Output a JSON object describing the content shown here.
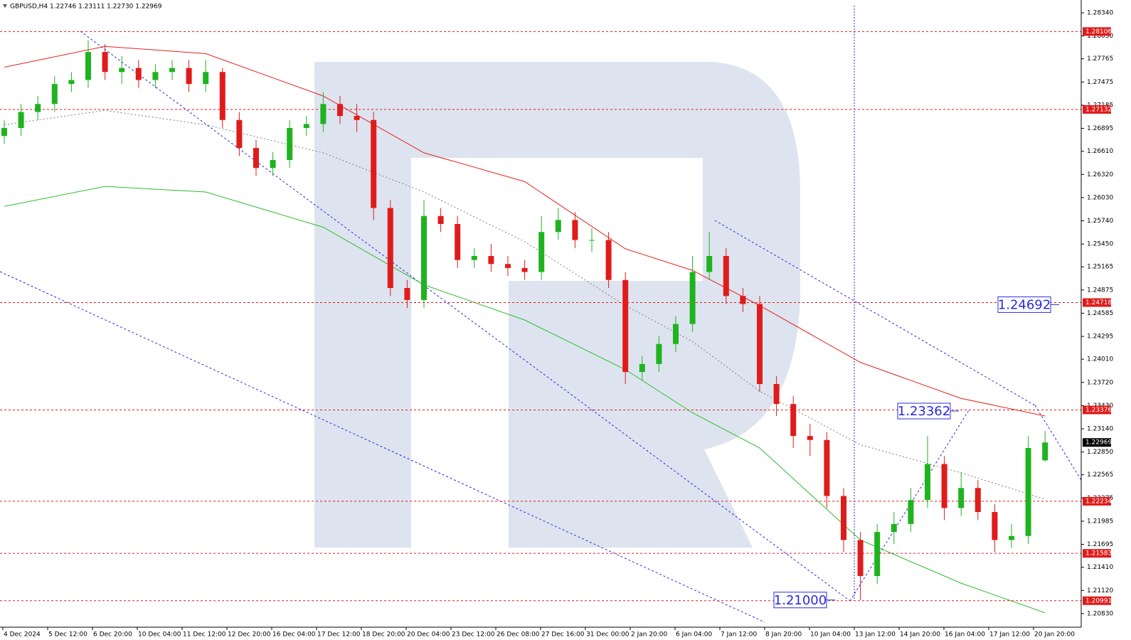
{
  "chart_data": {
    "type": "candlestick",
    "title": "GBPUSD,H4  1.22746 1.23111 1.22730 1.22969",
    "up_color": "#1fb31f",
    "down_color": "#e01b1b",
    "open": [
      1.268,
      1.269,
      1.271,
      1.272,
      1.2745,
      1.275,
      1.2785,
      1.276,
      1.2765,
      1.275,
      1.276,
      1.2765,
      1.2745,
      1.276,
      1.27,
      1.2665,
      1.264,
      1.265,
      1.269,
      1.2695,
      1.272,
      1.2705,
      1.27,
      1.259,
      1.249,
      1.2475,
      1.258,
      1.257,
      1.2525,
      1.253,
      1.252,
      1.2515,
      1.251,
      1.256,
      1.2575,
      1.255,
      1.255,
      1.25,
      1.2385,
      1.2395,
      1.242,
      1.2445,
      1.251,
      1.253,
      1.248,
      1.247,
      1.237,
      1.2345,
      1.2305,
      1.23,
      1.223,
      1.2175,
      1.213,
      1.2185,
      1.2195,
      1.2225,
      1.227,
      1.2215,
      1.224,
      1.221,
      1.2175,
      1.218,
      1.22746
    ],
    "high": [
      1.27,
      1.272,
      1.273,
      1.2755,
      1.276,
      1.28,
      1.2795,
      1.278,
      1.2775,
      1.277,
      1.2775,
      1.2775,
      1.2775,
      1.2765,
      1.271,
      1.2675,
      1.266,
      1.27,
      1.2705,
      1.2735,
      1.273,
      1.272,
      1.271,
      1.26,
      1.25,
      1.26,
      1.259,
      1.258,
      1.254,
      1.2545,
      1.253,
      1.2525,
      1.258,
      1.259,
      1.2585,
      1.2565,
      1.256,
      1.251,
      1.2405,
      1.243,
      1.2455,
      1.253,
      1.256,
      1.254,
      1.249,
      1.248,
      1.238,
      1.2355,
      1.232,
      1.231,
      1.224,
      1.2185,
      1.2195,
      1.221,
      1.224,
      1.2305,
      1.228,
      1.226,
      1.225,
      1.222,
      1.2195,
      1.2305,
      1.23111
    ],
    "low": [
      1.267,
      1.268,
      1.27,
      1.271,
      1.2735,
      1.274,
      1.275,
      1.2745,
      1.274,
      1.274,
      1.275,
      1.2735,
      1.2735,
      1.269,
      1.2655,
      1.263,
      1.263,
      1.264,
      1.268,
      1.2685,
      1.2695,
      1.2685,
      1.2575,
      1.248,
      1.2465,
      1.2465,
      1.256,
      1.2515,
      1.2515,
      1.251,
      1.2505,
      1.25,
      1.25,
      1.255,
      1.254,
      1.2535,
      1.249,
      1.237,
      1.2375,
      1.2385,
      1.241,
      1.2435,
      1.25,
      1.247,
      1.246,
      1.236,
      1.233,
      1.229,
      1.228,
      1.2215,
      1.216,
      1.21,
      1.212,
      1.217,
      1.2185,
      1.2215,
      1.22,
      1.2205,
      1.22,
      1.216,
      1.2165,
      1.217,
      1.2273
    ],
    "close": [
      1.269,
      1.271,
      1.272,
      1.2745,
      1.275,
      1.2785,
      1.276,
      1.2765,
      1.275,
      1.276,
      1.2765,
      1.2745,
      1.276,
      1.27,
      1.2665,
      1.264,
      1.265,
      1.269,
      1.2695,
      1.272,
      1.2705,
      1.27,
      1.259,
      1.249,
      1.2475,
      1.258,
      1.257,
      1.2525,
      1.253,
      1.252,
      1.2515,
      1.251,
      1.256,
      1.2575,
      1.255,
      1.255,
      1.25,
      1.2385,
      1.2395,
      1.242,
      1.2445,
      1.251,
      1.253,
      1.248,
      1.247,
      1.237,
      1.2345,
      1.2305,
      1.23,
      1.223,
      1.2175,
      1.213,
      1.2185,
      1.2195,
      1.2225,
      1.227,
      1.2215,
      1.224,
      1.221,
      1.2175,
      1.218,
      1.229,
      1.22969
    ],
    "indicators": [
      {
        "color": "#e8201a",
        "dash": false,
        "x": [
          0,
          6,
          12,
          19,
          25,
          31,
          37,
          41,
          45,
          51,
          57,
          62
        ],
        "values": [
          1.2766,
          1.2792,
          1.2783,
          1.273,
          1.2659,
          1.2623,
          1.2539,
          1.2512,
          1.2468,
          1.2397,
          1.2352,
          1.233
        ]
      },
      {
        "color": "#2ebd2e",
        "dash": false,
        "x": [
          0,
          6,
          12,
          19,
          25,
          31,
          37,
          41,
          45,
          51,
          57,
          62
        ],
        "values": [
          1.2592,
          1.2617,
          1.261,
          1.2566,
          1.2494,
          1.245,
          1.2388,
          1.2334,
          1.229,
          1.2175,
          1.2121,
          1.2084
        ]
      },
      {
        "color": "#808080",
        "dash": true,
        "x": [
          0,
          6,
          12,
          19,
          25,
          31,
          37,
          41,
          45,
          51,
          57,
          62
        ],
        "values": [
          1.2694,
          1.2712,
          1.2694,
          1.2659,
          1.261,
          1.2548,
          1.2468,
          1.2423,
          1.2361,
          1.2294,
          1.2259,
          1.2226
        ]
      }
    ],
    "levels": [
      1.28106,
      1.27132,
      1.24718,
      1.23376,
      1.22234,
      1.21583,
      1.20991
    ],
    "level_color": "#e01b1b",
    "last_price": 1.22969,
    "forecast_labels": [
      1.24692,
      1.23362,
      {
        "value": 1.21,
        "label": "1.21000"
      }
    ],
    "ylim": [
      1.2066,
      1.285
    ],
    "yticks": [
      {
        "value": 1.2834,
        "label": "1.28340"
      },
      {
        "value": 1.2805,
        "label": "1.28050"
      },
      1.27765,
      1.27475,
      1.27185,
      1.26895,
      {
        "value": 1.2661,
        "label": "1.26610"
      },
      {
        "value": 1.2632,
        "label": "1.26320"
      },
      {
        "value": 1.2603,
        "label": "1.26030"
      },
      {
        "value": 1.2574,
        "label": "1.25740"
      },
      {
        "value": 1.2545,
        "label": "1.25450"
      },
      1.25165,
      1.24875,
      1.24585,
      1.24295,
      {
        "value": 1.2401,
        "label": "1.24010"
      },
      {
        "value": 1.2372,
        "label": "1.23720"
      },
      {
        "value": 1.2343,
        "label": "1.23430"
      },
      {
        "value": 1.2314,
        "label": "1.23140"
      },
      {
        "value": 1.2285,
        "label": "1.22850"
      },
      1.22565,
      1.22275,
      1.21985,
      1.21695,
      {
        "value": 1.2141,
        "label": "1.21410"
      },
      {
        "value": 1.2112,
        "label": "1.21120"
      },
      {
        "value": 1.2083,
        "label": "1.20830"
      }
    ],
    "time_labels": [
      "4 Dec 2024",
      "5 Dec 12:00",
      "6 Dec 20:00",
      "10 Dec 04:00",
      "11 Dec 12:00",
      "12 Dec 20:00",
      "16 Dec 04:00",
      "17 Dec 12:00",
      "18 Dec 20:00",
      "20 Dec 04:00",
      "23 Dec 12:00",
      "26 Dec 08:00",
      "27 Dec 16:00",
      "31 Dec 00:00",
      "2 Jan 20:00",
      "6 Jan 04:00",
      "7 Jan 12:00",
      "8 Jan 20:00",
      "10 Jan 04:00",
      "13 Jan 12:00",
      "14 Jan 20:00",
      "16 Jan 04:00",
      "17 Jan 12:00",
      "20 Jan 20:00"
    ]
  }
}
